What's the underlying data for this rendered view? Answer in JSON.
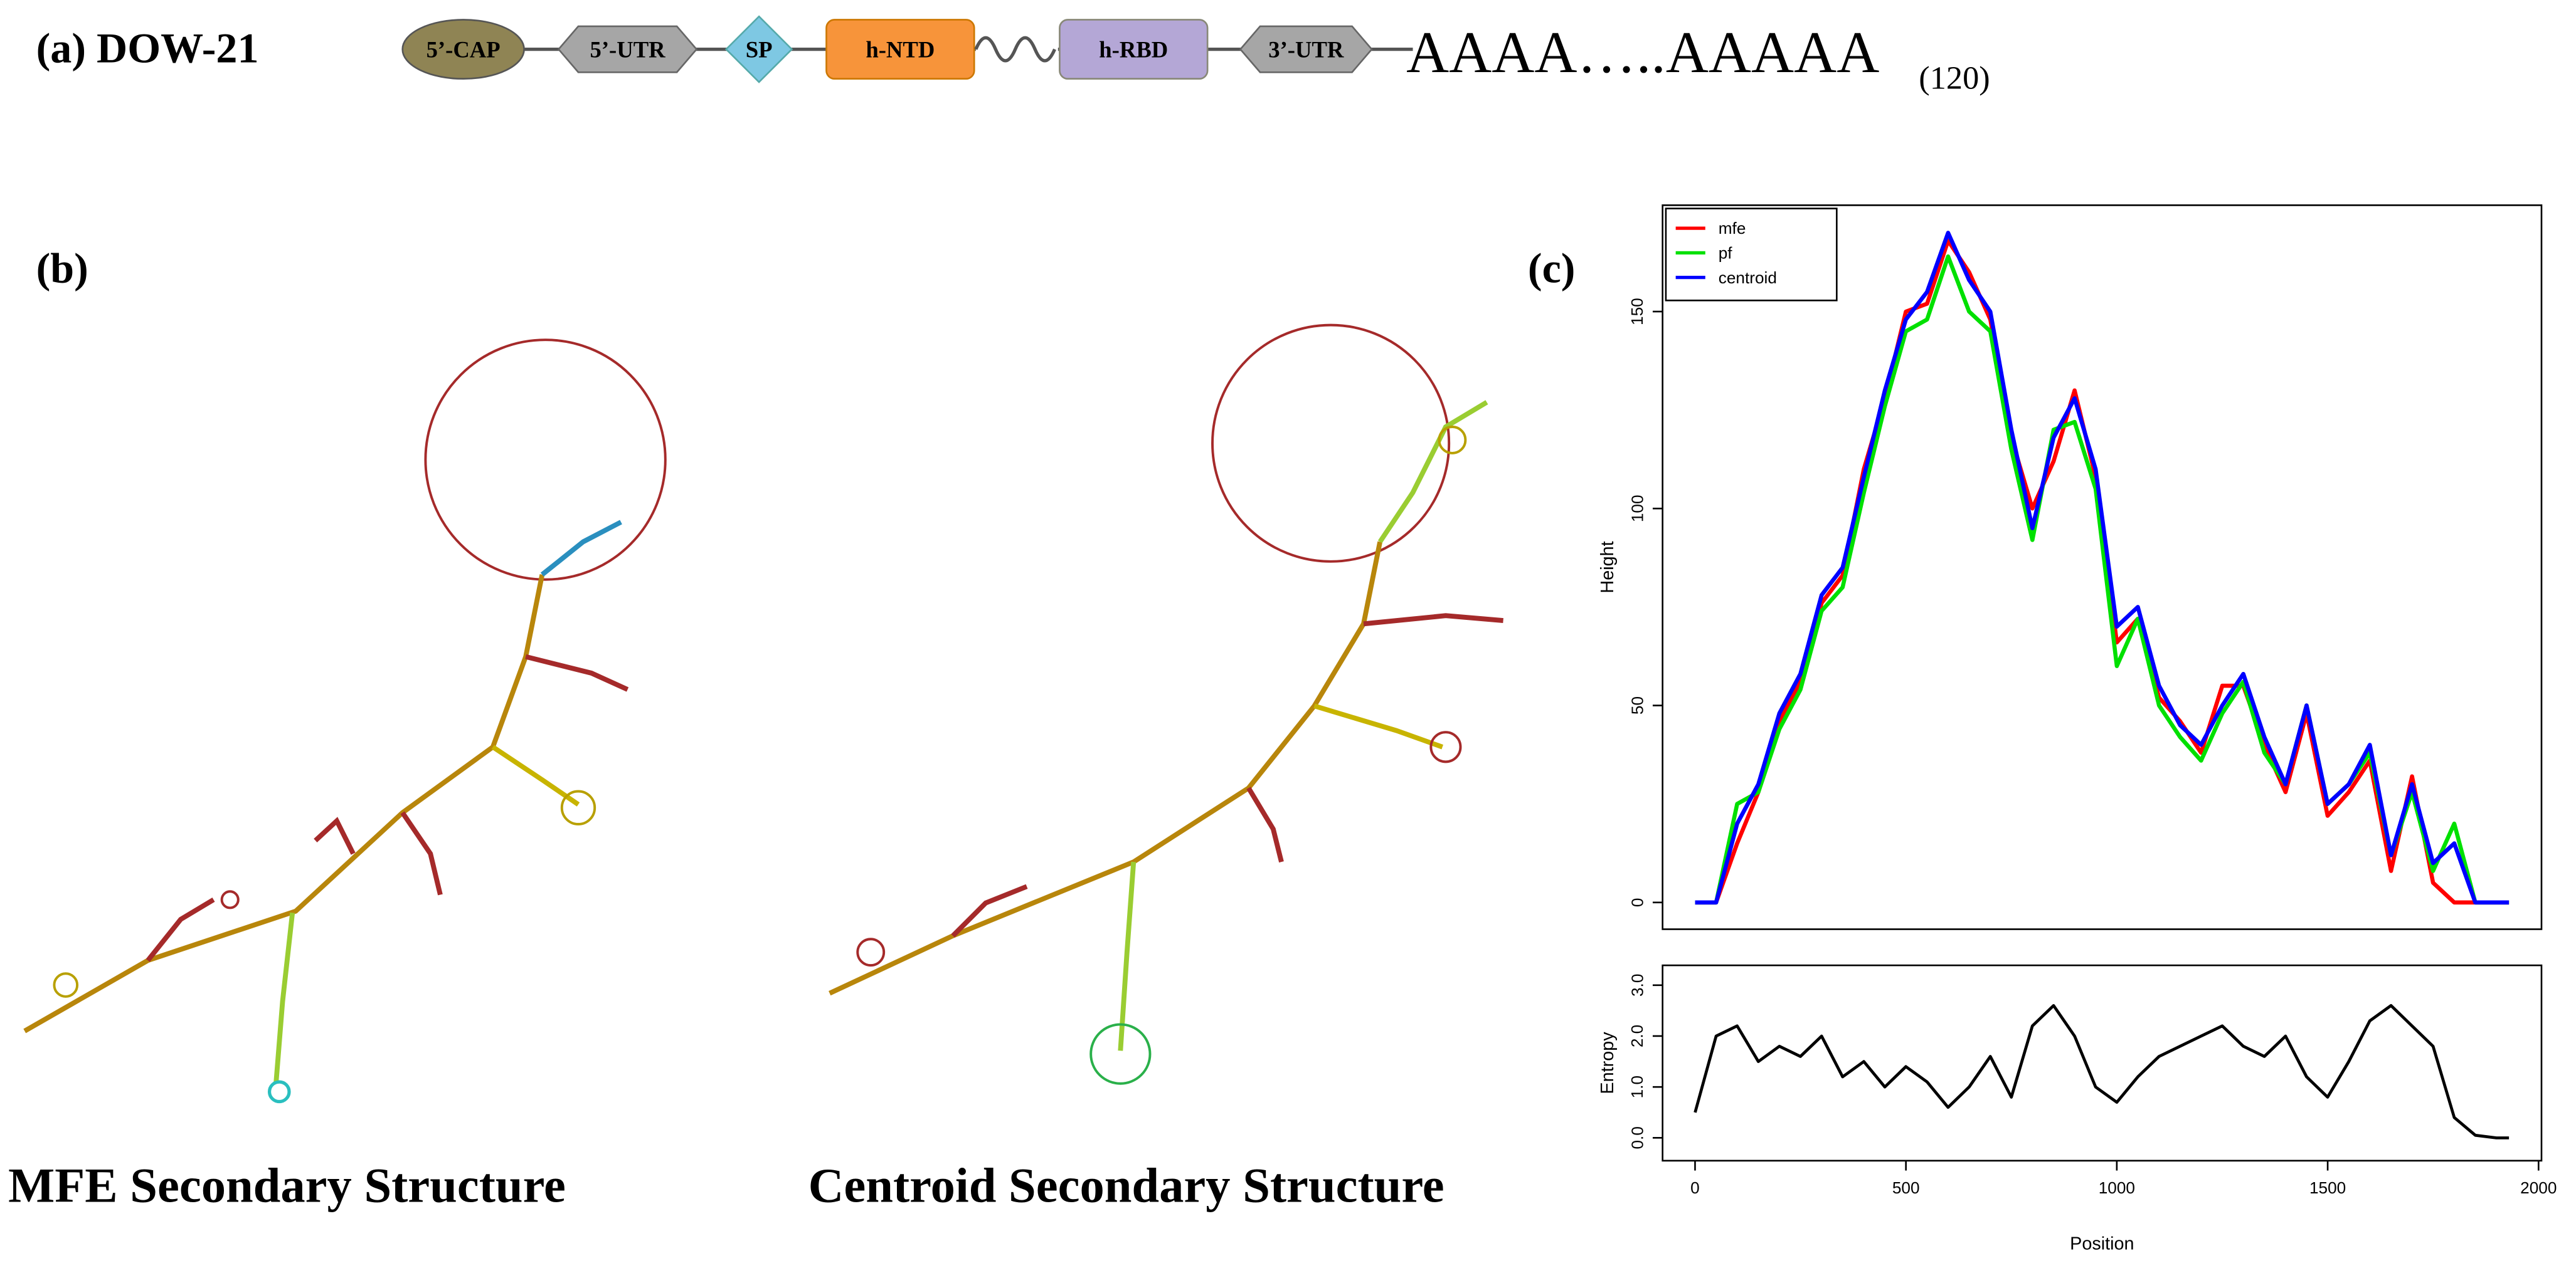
{
  "panel_a": {
    "label": "(a) DOW-21",
    "elements": [
      "5’-CAP",
      "5’-UTR",
      "SP",
      "h-NTD",
      "h-RBD",
      "3’-UTR"
    ],
    "tail": "AAAA…..AAAAA",
    "tail_count": "(120)"
  },
  "panel_b": {
    "label": "(b)",
    "captions": [
      "MFE Secondary Structure",
      "Centroid Secondary Structure"
    ]
  },
  "panel_c": {
    "label": "(c)"
  },
  "chart_data": [
    {
      "type": "line",
      "y_label": "Height",
      "x": [
        0,
        50,
        100,
        150,
        200,
        250,
        300,
        350,
        400,
        450,
        500,
        550,
        600,
        650,
        700,
        750,
        800,
        850,
        900,
        950,
        1000,
        1050,
        1100,
        1150,
        1200,
        1250,
        1300,
        1350,
        1400,
        1450,
        1500,
        1550,
        1600,
        1650,
        1700,
        1750,
        1800,
        1850,
        1900,
        1930
      ],
      "series": [
        {
          "name": "mfe",
          "color": "#ff0000",
          "values": [
            0,
            0,
            15,
            28,
            46,
            56,
            76,
            83,
            110,
            128,
            150,
            152,
            168,
            160,
            148,
            118,
            100,
            112,
            130,
            108,
            66,
            72,
            52,
            46,
            38,
            55,
            55,
            40,
            28,
            48,
            22,
            28,
            36,
            8,
            32,
            5,
            0,
            0,
            0,
            0
          ]
        },
        {
          "name": "pf",
          "color": "#00e000",
          "values": [
            0,
            0,
            25,
            28,
            44,
            54,
            74,
            80,
            104,
            126,
            145,
            148,
            164,
            150,
            145,
            115,
            92,
            120,
            122,
            105,
            60,
            72,
            50,
            42,
            36,
            48,
            56,
            38,
            30,
            50,
            25,
            30,
            38,
            12,
            28,
            8,
            20,
            0,
            0,
            0
          ]
        },
        {
          "name": "centroid",
          "color": "#0000ff",
          "values": [
            0,
            0,
            20,
            30,
            48,
            58,
            78,
            85,
            108,
            130,
            148,
            155,
            170,
            158,
            150,
            120,
            95,
            118,
            128,
            110,
            70,
            75,
            55,
            45,
            40,
            50,
            58,
            42,
            30,
            50,
            25,
            30,
            40,
            12,
            30,
            10,
            15,
            0,
            0,
            0
          ]
        }
      ],
      "xlim": [
        -77,
        2007
      ],
      "ylim": [
        -6.8,
        177
      ],
      "yticks": [
        0,
        50,
        100,
        150
      ],
      "legend": "top-left"
    },
    {
      "type": "line",
      "y_label": "Entropy",
      "x_label": "Position",
      "x": [
        0,
        50,
        100,
        150,
        200,
        250,
        300,
        350,
        400,
        450,
        500,
        550,
        600,
        650,
        700,
        750,
        800,
        850,
        900,
        950,
        1000,
        1050,
        1100,
        1150,
        1200,
        1250,
        1300,
        1350,
        1400,
        1450,
        1500,
        1550,
        1600,
        1650,
        1700,
        1750,
        1800,
        1850,
        1900,
        1930
      ],
      "series": [
        {
          "color": "#000000",
          "values": [
            0.5,
            2.0,
            2.2,
            1.5,
            1.8,
            1.6,
            2.0,
            1.2,
            1.5,
            1.0,
            1.4,
            1.1,
            0.6,
            1.0,
            1.6,
            0.8,
            2.2,
            2.6,
            2.0,
            1.0,
            0.7,
            1.2,
            1.6,
            1.8,
            2.0,
            2.2,
            1.8,
            1.6,
            2.0,
            1.2,
            0.8,
            1.5,
            2.3,
            2.6,
            2.2,
            1.8,
            0.4,
            0.05,
            0.0,
            0.0
          ]
        }
      ],
      "xlim": [
        -77,
        2007
      ],
      "ylim": [
        -0.45,
        3.39
      ],
      "xticks": [
        0,
        500,
        1000,
        1500,
        2000
      ],
      "yticks": [
        {
          "value": 0,
          "label": "0.0"
        },
        {
          "value": 1,
          "label": "1.0"
        },
        {
          "value": 2,
          "label": "2.0"
        },
        {
          "value": 3,
          "label": "3.0"
        }
      ]
    }
  ]
}
